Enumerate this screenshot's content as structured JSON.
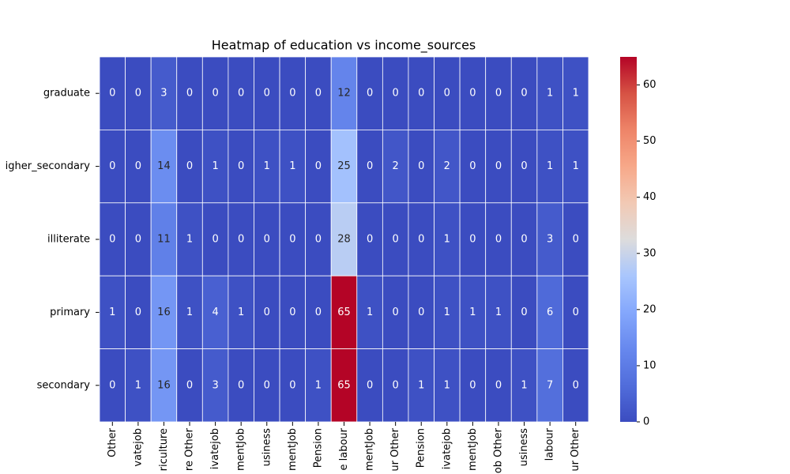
{
  "chart_data": {
    "type": "heatmap",
    "title": "Heatmap of education vs income_sources",
    "rows": [
      "graduate",
      "igher_secondary",
      "illiterate",
      "primary",
      "secondary"
    ],
    "columns": [
      "Other",
      "vatejob",
      "riculture",
      "re Other",
      "ivatejob",
      "mentJob",
      "usiness",
      "mentJob",
      "Pension",
      "e labour",
      "mentJob",
      "ur Other",
      "Pension",
      "ivatejob",
      "mentJob",
      "ob Other",
      "usiness",
      "labour",
      "ur Other"
    ],
    "values": [
      [
        0,
        0,
        3,
        0,
        0,
        0,
        0,
        0,
        0,
        12,
        0,
        0,
        0,
        0,
        0,
        0,
        0,
        1,
        1
      ],
      [
        0,
        0,
        14,
        0,
        1,
        0,
        1,
        1,
        0,
        25,
        0,
        2,
        0,
        2,
        0,
        0,
        0,
        1,
        1
      ],
      [
        0,
        0,
        11,
        1,
        0,
        0,
        0,
        0,
        0,
        28,
        0,
        0,
        0,
        1,
        0,
        0,
        0,
        3,
        0
      ],
      [
        1,
        0,
        16,
        1,
        4,
        1,
        0,
        0,
        0,
        65,
        1,
        0,
        0,
        1,
        1,
        1,
        0,
        6,
        0
      ],
      [
        0,
        1,
        16,
        0,
        3,
        0,
        0,
        0,
        1,
        65,
        0,
        0,
        1,
        1,
        0,
        0,
        1,
        7,
        0
      ]
    ],
    "colormap": "coolwarm",
    "clim": [
      0,
      65
    ],
    "cticks": [
      0,
      10,
      20,
      30,
      40,
      50,
      60
    ]
  }
}
